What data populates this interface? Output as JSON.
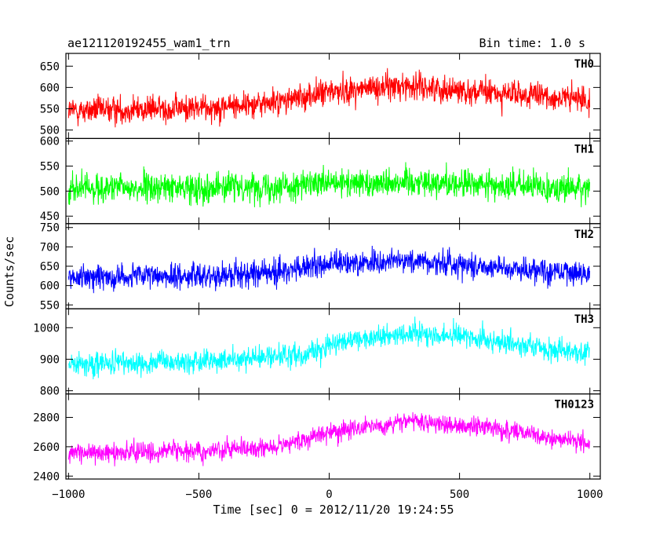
{
  "header": {
    "title": "ae121120192455_wam1_trn",
    "bin_time": "Bin time: 1.0 s"
  },
  "chart_data": {
    "type": "line",
    "title": "ae121120192455_wam1_trn",
    "xlabel": "Time [sec] 0 = 2012/11/20 19:24:55",
    "ylabel": "Counts/sec",
    "xlim": [
      -1010,
      1040
    ],
    "x_ticks": [
      -1000,
      -500,
      0,
      500,
      1000
    ],
    "x_tick_labels": [
      "−1000",
      "−500",
      "0",
      "500",
      "1000"
    ],
    "x_range": [
      -1000,
      1000
    ],
    "bin_time_s": 1.0,
    "grid": false,
    "panels": [
      {
        "name": "TH0",
        "color": "#ff0000",
        "ylim": [
          480,
          680
        ],
        "y_ticks": [
          500,
          550,
          600,
          650
        ],
        "profile": {
          "x": [
            -1000,
            -500,
            -200,
            0,
            300,
            600,
            1000
          ],
          "y": [
            545,
            552,
            565,
            590,
            605,
            588,
            570
          ]
        },
        "spread": 35
      },
      {
        "name": "TH1",
        "color": "#00ff00",
        "ylim": [
          435,
          605
        ],
        "y_ticks": [
          450,
          500,
          550,
          600
        ],
        "profile": {
          "x": [
            -1000,
            -500,
            0,
            300,
            600,
            1000
          ],
          "y": [
            505,
            507,
            513,
            520,
            512,
            505
          ]
        },
        "spread": 32
      },
      {
        "name": "TH2",
        "color": "#0000ff",
        "ylim": [
          540,
          760
        ],
        "y_ticks": [
          550,
          600,
          650,
          700,
          750
        ],
        "profile": {
          "x": [
            -1000,
            -500,
            -200,
            0,
            300,
            600,
            1000
          ],
          "y": [
            622,
            625,
            635,
            655,
            665,
            650,
            630
          ]
        },
        "spread": 36
      },
      {
        "name": "TH3",
        "color": "#00ffff",
        "ylim": [
          790,
          1060
        ],
        "y_ticks": [
          800,
          900,
          1000
        ],
        "profile": {
          "x": [
            -1000,
            -500,
            -100,
            0,
            300,
            500,
            800,
            1000
          ],
          "y": [
            885,
            890,
            915,
            945,
            985,
            975,
            935,
            920
          ]
        },
        "spread": 40
      },
      {
        "name": "TH0123",
        "color": "#ff00ff",
        "ylim": [
          2380,
          2960
        ],
        "y_ticks": [
          2400,
          2600,
          2800
        ],
        "profile": {
          "x": [
            -1000,
            -500,
            -200,
            0,
            300,
            600,
            1000
          ],
          "y": [
            2560,
            2570,
            2600,
            2700,
            2770,
            2730,
            2620
          ]
        },
        "spread": 70
      }
    ]
  }
}
